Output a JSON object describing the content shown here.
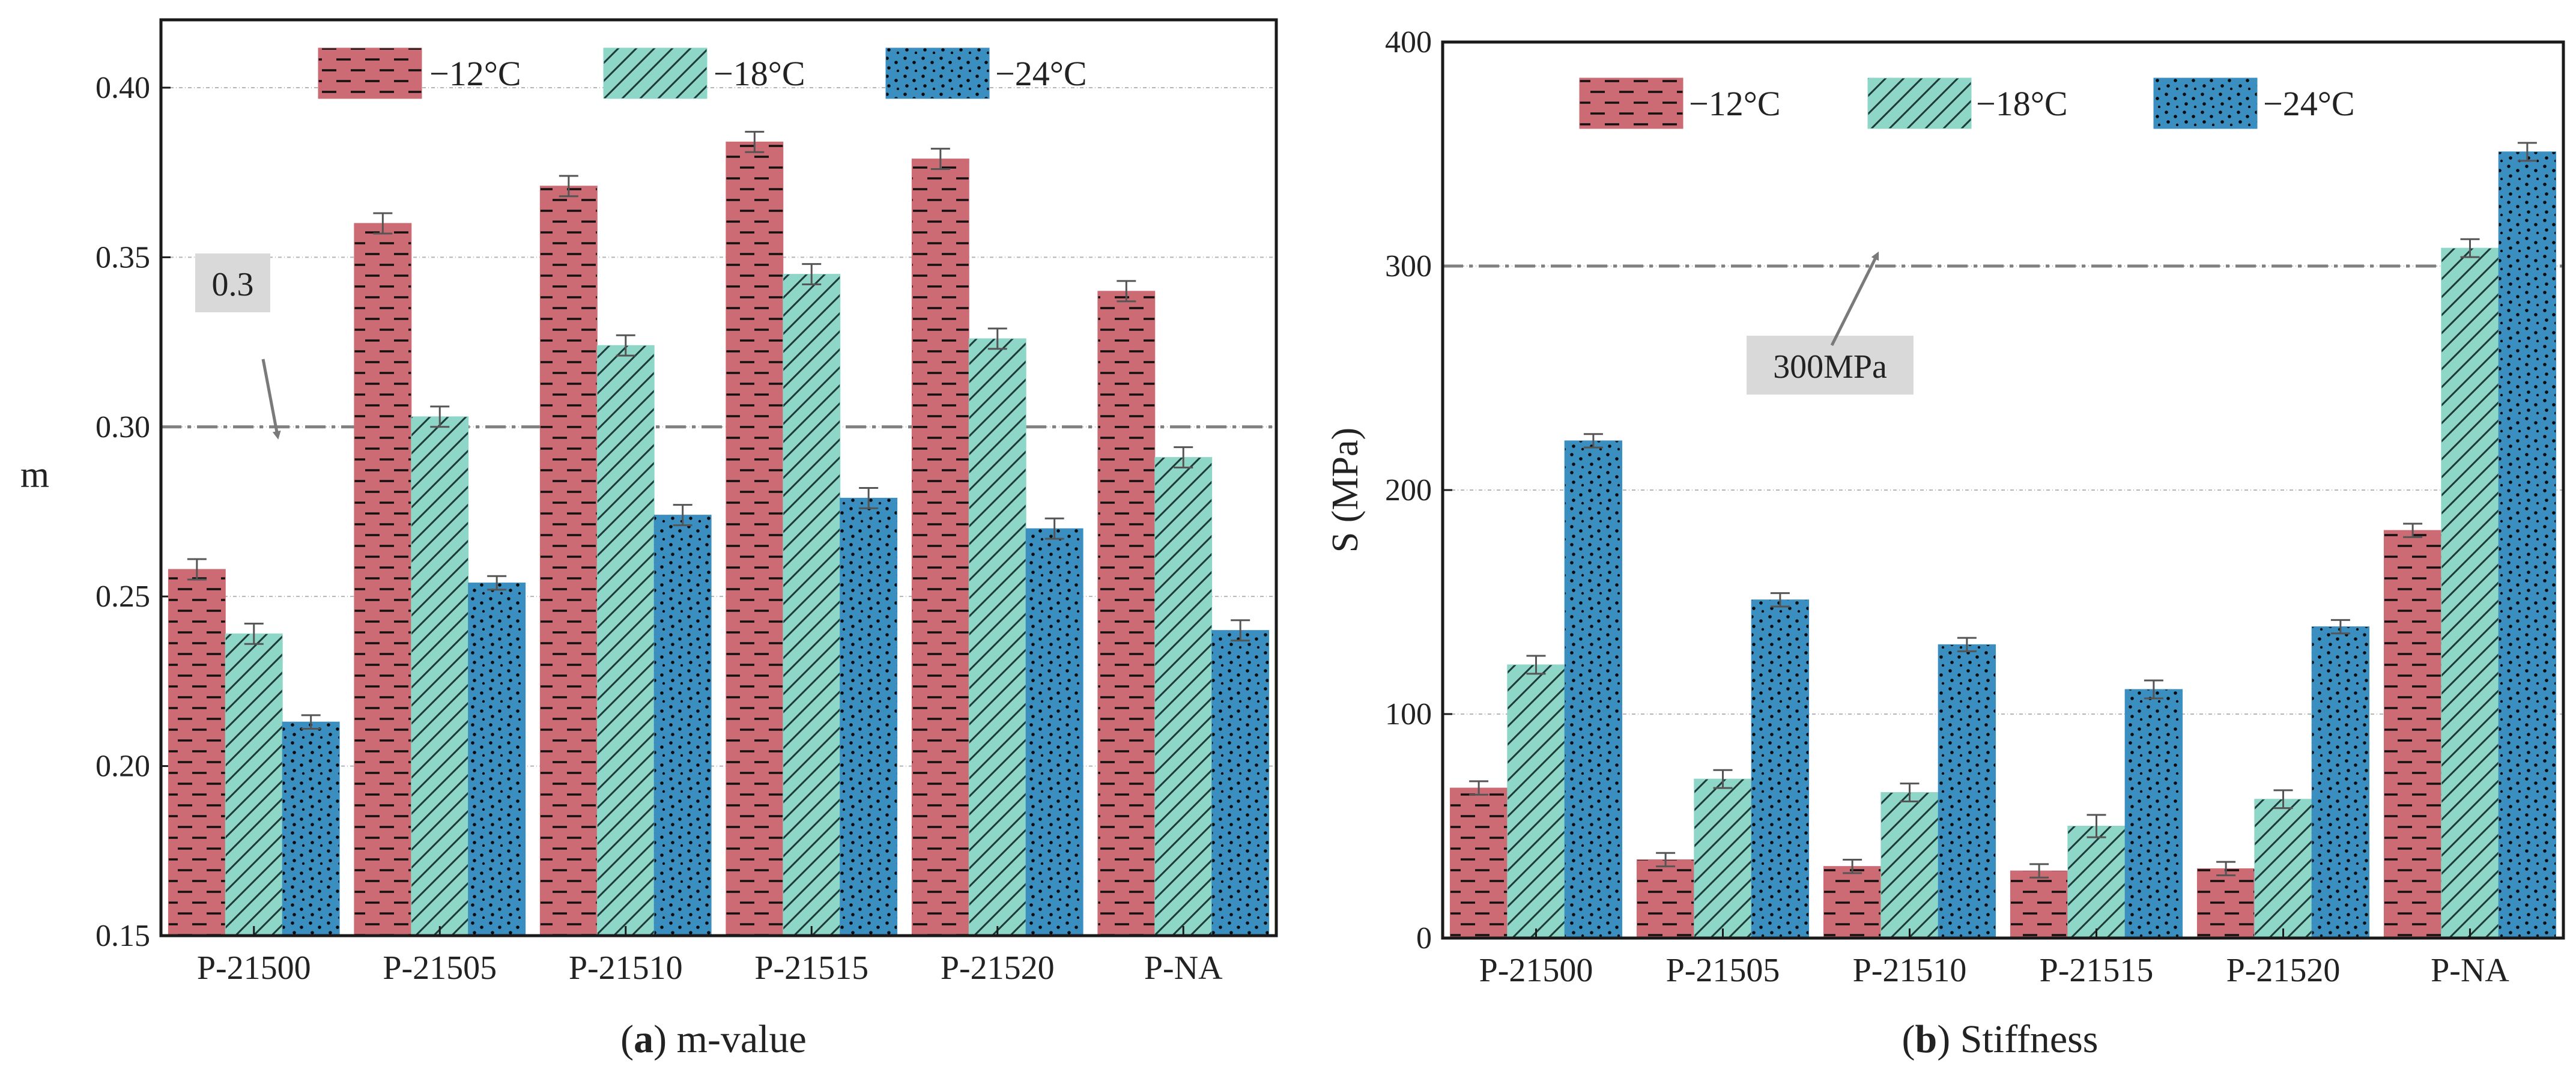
{
  "chart_data": [
    {
      "type": "bar",
      "panel_letter": "a",
      "caption_text": " m-value",
      "ylabel": "m",
      "xlabel": "",
      "ylim": [
        0.15,
        0.42
      ],
      "yticks": [
        "0.15",
        "0.20",
        "0.25",
        "0.30",
        "0.35",
        "0.40"
      ],
      "categories": [
        "P-21500",
        "P-21505",
        "P-21510",
        "P-21515",
        "P-21520",
        "P-NA"
      ],
      "series": [
        {
          "name": "−12°C",
          "values": [
            0.258,
            0.36,
            0.371,
            0.384,
            0.379,
            0.34
          ],
          "errors": [
            0.003,
            0.003,
            0.003,
            0.003,
            0.003,
            0.003
          ]
        },
        {
          "name": "−18°C",
          "values": [
            0.239,
            0.303,
            0.324,
            0.345,
            0.326,
            0.291
          ],
          "errors": [
            0.003,
            0.003,
            0.003,
            0.003,
            0.003,
            0.003
          ]
        },
        {
          "name": "−24°C",
          "values": [
            0.213,
            0.254,
            0.274,
            0.279,
            0.27,
            0.24
          ],
          "errors": [
            0.002,
            0.002,
            0.003,
            0.003,
            0.003,
            0.003
          ]
        }
      ],
      "reference_line": {
        "value": 0.3,
        "label": "0.3"
      },
      "legend": "top",
      "grid": true
    },
    {
      "type": "bar",
      "panel_letter": "b",
      "caption_text": " Stiffness",
      "ylabel": "S (MPa)",
      "xlabel": "",
      "ylim": [
        0,
        400
      ],
      "yticks": [
        "0",
        "100",
        "200",
        "300",
        "400"
      ],
      "categories": [
        "P-21500",
        "P-21505",
        "P-21510",
        "P-21515",
        "P-21520",
        "P-NA"
      ],
      "series": [
        {
          "name": "−12°C",
          "values": [
            67,
            35,
            32,
            30,
            31,
            182
          ],
          "errors": [
            3,
            3,
            3,
            3,
            3,
            3
          ]
        },
        {
          "name": "−18°C",
          "values": [
            122,
            71,
            65,
            50,
            62,
            308
          ],
          "errors": [
            4,
            4,
            4,
            5,
            4,
            4
          ]
        },
        {
          "name": "−24°C",
          "values": [
            222,
            151,
            131,
            111,
            139,
            351
          ],
          "errors": [
            3,
            3,
            3,
            4,
            3,
            4
          ]
        }
      ],
      "reference_line": {
        "value": 300,
        "label": "300MPa"
      },
      "legend": "top-left",
      "grid": true
    }
  ],
  "colors": {
    "series": [
      "#cd6b74",
      "#8ed6c8",
      "#3a8fc0"
    ],
    "axis": "#1a1a1a",
    "grid": "#b5b5b5",
    "reference": "#808080",
    "annotation_box": "#d9d9d9"
  }
}
